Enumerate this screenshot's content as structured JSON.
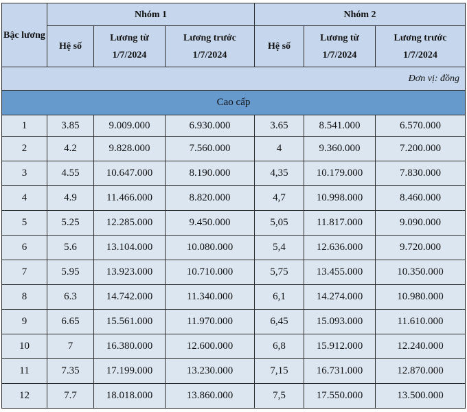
{
  "header": {
    "bac_luong": "Bậc lương",
    "group1": "Nhóm 1",
    "group2": "Nhóm 2",
    "he_so": "Hệ số",
    "luong_tu": "Lương từ 1/7/2024",
    "luong_truoc": "Lương trước 1/7/2024"
  },
  "unit": "Đơn vị: đồng",
  "tier": "Cao cấp",
  "rows": [
    [
      "1",
      "3.85",
      "9.009.000",
      "6.930.000",
      "3.65",
      "8.541.000",
      "6.570.000"
    ],
    [
      "2",
      "4.2",
      "9.828.000",
      "7.560.000",
      "4",
      "9.360.000",
      "7.200.000"
    ],
    [
      "3",
      "4.55",
      "10.647.000",
      "8.190.000",
      "4,35",
      "10.179.000",
      "7.830.000"
    ],
    [
      "4",
      "4.9",
      "11.466.000",
      "8.820.000",
      "4,7",
      "10.998.000",
      "8.460.000"
    ],
    [
      "5",
      "5.25",
      "12.285.000",
      "9.450.000",
      "5,05",
      "11.817.000",
      "9.090.000"
    ],
    [
      "6",
      "5.6",
      "13.104.000",
      "10.080.000",
      "5,4",
      "12.636.000",
      "9.720.000"
    ],
    [
      "7",
      "5.95",
      "13.923.000",
      "10.710.000",
      "5,75",
      "13.455.000",
      "10.350.000"
    ],
    [
      "8",
      "6.3",
      "14.742.000",
      "11.340.000",
      "6,1",
      "14.274.000",
      "10.980.000"
    ],
    [
      "9",
      "6.65",
      "15.561.000",
      "11.970.000",
      "6,45",
      "15.093.000",
      "11.610.000"
    ],
    [
      "10",
      "7",
      "16.380.000",
      "12.600.000",
      "6,8",
      "15.912.000",
      "12.240.000"
    ],
    [
      "11",
      "7.35",
      "17.199.000",
      "13.230.000",
      "7,15",
      "16.731.000",
      "12.870.000"
    ],
    [
      "12",
      "7.7",
      "18.018.000",
      "13.860.000",
      "7,5",
      "17.550.000",
      "13.500.000"
    ]
  ]
}
